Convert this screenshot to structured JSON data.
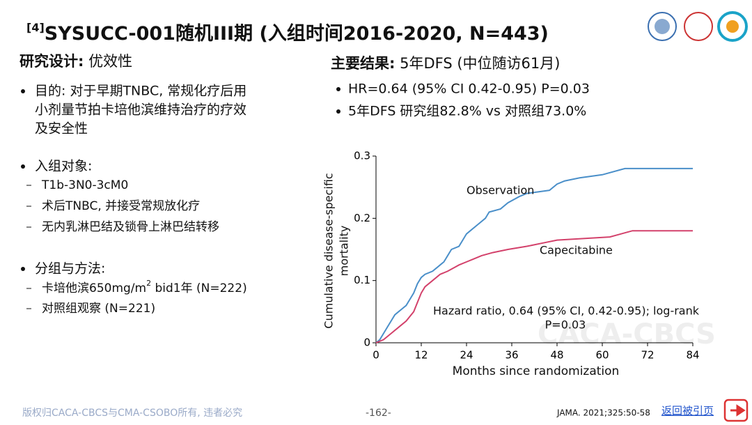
{
  "header": {
    "title_ref": "[4]",
    "title": "SYSUCC-001随机III期 (入组时间2016-2020, N=443)"
  },
  "left": {
    "design_label": "研究设计:",
    "design_value": " 优效性",
    "aim_lines": [
      "目的: 对于早期TNBC, 常规化疗后用",
      "小剂量节拍卡培他滨维持治疗的疗效",
      "及安全性"
    ],
    "population": {
      "title": "入组对象:",
      "items": [
        "T1b-3N0-3cM0",
        "术后TNBC, 并接受常规放化疗",
        "无内乳淋巴结及锁骨上淋巴结转移"
      ]
    },
    "groups": {
      "title": "分组与方法:",
      "items": [
        [
          "卡培他滨650mg/m",
          "2",
          " bid1年 (N=222)"
        ],
        [
          "对照组观察 (N=221)"
        ]
      ]
    }
  },
  "right": {
    "result_label": "主要结果:",
    "result_value": " 5年DFS (中位随访61月)",
    "bullets": [
      "HR=0.64 (95% CI 0.42-0.95) P=0.03",
      "5年DFS 研究组82.8% vs 对照组73.0%"
    ]
  },
  "chart_data": {
    "type": "line",
    "y_label": [
      "Cumulative disease-specific",
      "mortality"
    ],
    "x_label": "Months since randomization",
    "xlim": [
      0,
      84
    ],
    "xticks": [
      0,
      12,
      24,
      36,
      48,
      60,
      72,
      84
    ],
    "ylim": [
      0,
      0.3
    ],
    "yticks": [
      0,
      0.1,
      0.2,
      0.3
    ],
    "series": [
      {
        "name": "Observation",
        "color": "#4a8fc9",
        "x": [
          0,
          1,
          2,
          3,
          4,
          5,
          6,
          7,
          8,
          9,
          10,
          11,
          12,
          13,
          15,
          16,
          17,
          18,
          19,
          20,
          22,
          23,
          24,
          25,
          27,
          29,
          30,
          33,
          35,
          38,
          40,
          46,
          48,
          50,
          54,
          60,
          66,
          84
        ],
        "values": [
          0,
          0.005,
          0.015,
          0.025,
          0.035,
          0.045,
          0.05,
          0.055,
          0.06,
          0.07,
          0.08,
          0.095,
          0.105,
          0.11,
          0.115,
          0.12,
          0.125,
          0.13,
          0.14,
          0.15,
          0.155,
          0.165,
          0.175,
          0.18,
          0.19,
          0.2,
          0.21,
          0.215,
          0.225,
          0.235,
          0.24,
          0.245,
          0.255,
          0.26,
          0.265,
          0.27,
          0.28,
          0.28
        ]
      },
      {
        "name": "Capecitabine",
        "color": "#d3416b",
        "x": [
          0,
          2,
          4,
          6,
          8,
          10,
          11,
          12,
          13,
          15,
          17,
          19,
          22,
          24,
          26,
          28,
          31,
          35,
          40,
          44,
          48,
          62,
          68,
          84
        ],
        "values": [
          0,
          0.005,
          0.015,
          0.025,
          0.035,
          0.05,
          0.065,
          0.08,
          0.09,
          0.1,
          0.11,
          0.115,
          0.125,
          0.13,
          0.135,
          0.14,
          0.145,
          0.15,
          0.155,
          0.16,
          0.165,
          0.17,
          0.18,
          0.18
        ]
      }
    ],
    "annotations": [
      "Hazard ratio, 0.64 (95% CI, 0.42-0.95); log-rank",
      "P=0.03"
    ],
    "watermark": "CACA-CBCS"
  },
  "footer": {
    "copyright": "版权归CACA-CBCS与CMA-CSOBO所有, 违者必究",
    "page": "-162-",
    "citation": "JAMA. 2021;325:50-58",
    "back": "返回被引页"
  }
}
